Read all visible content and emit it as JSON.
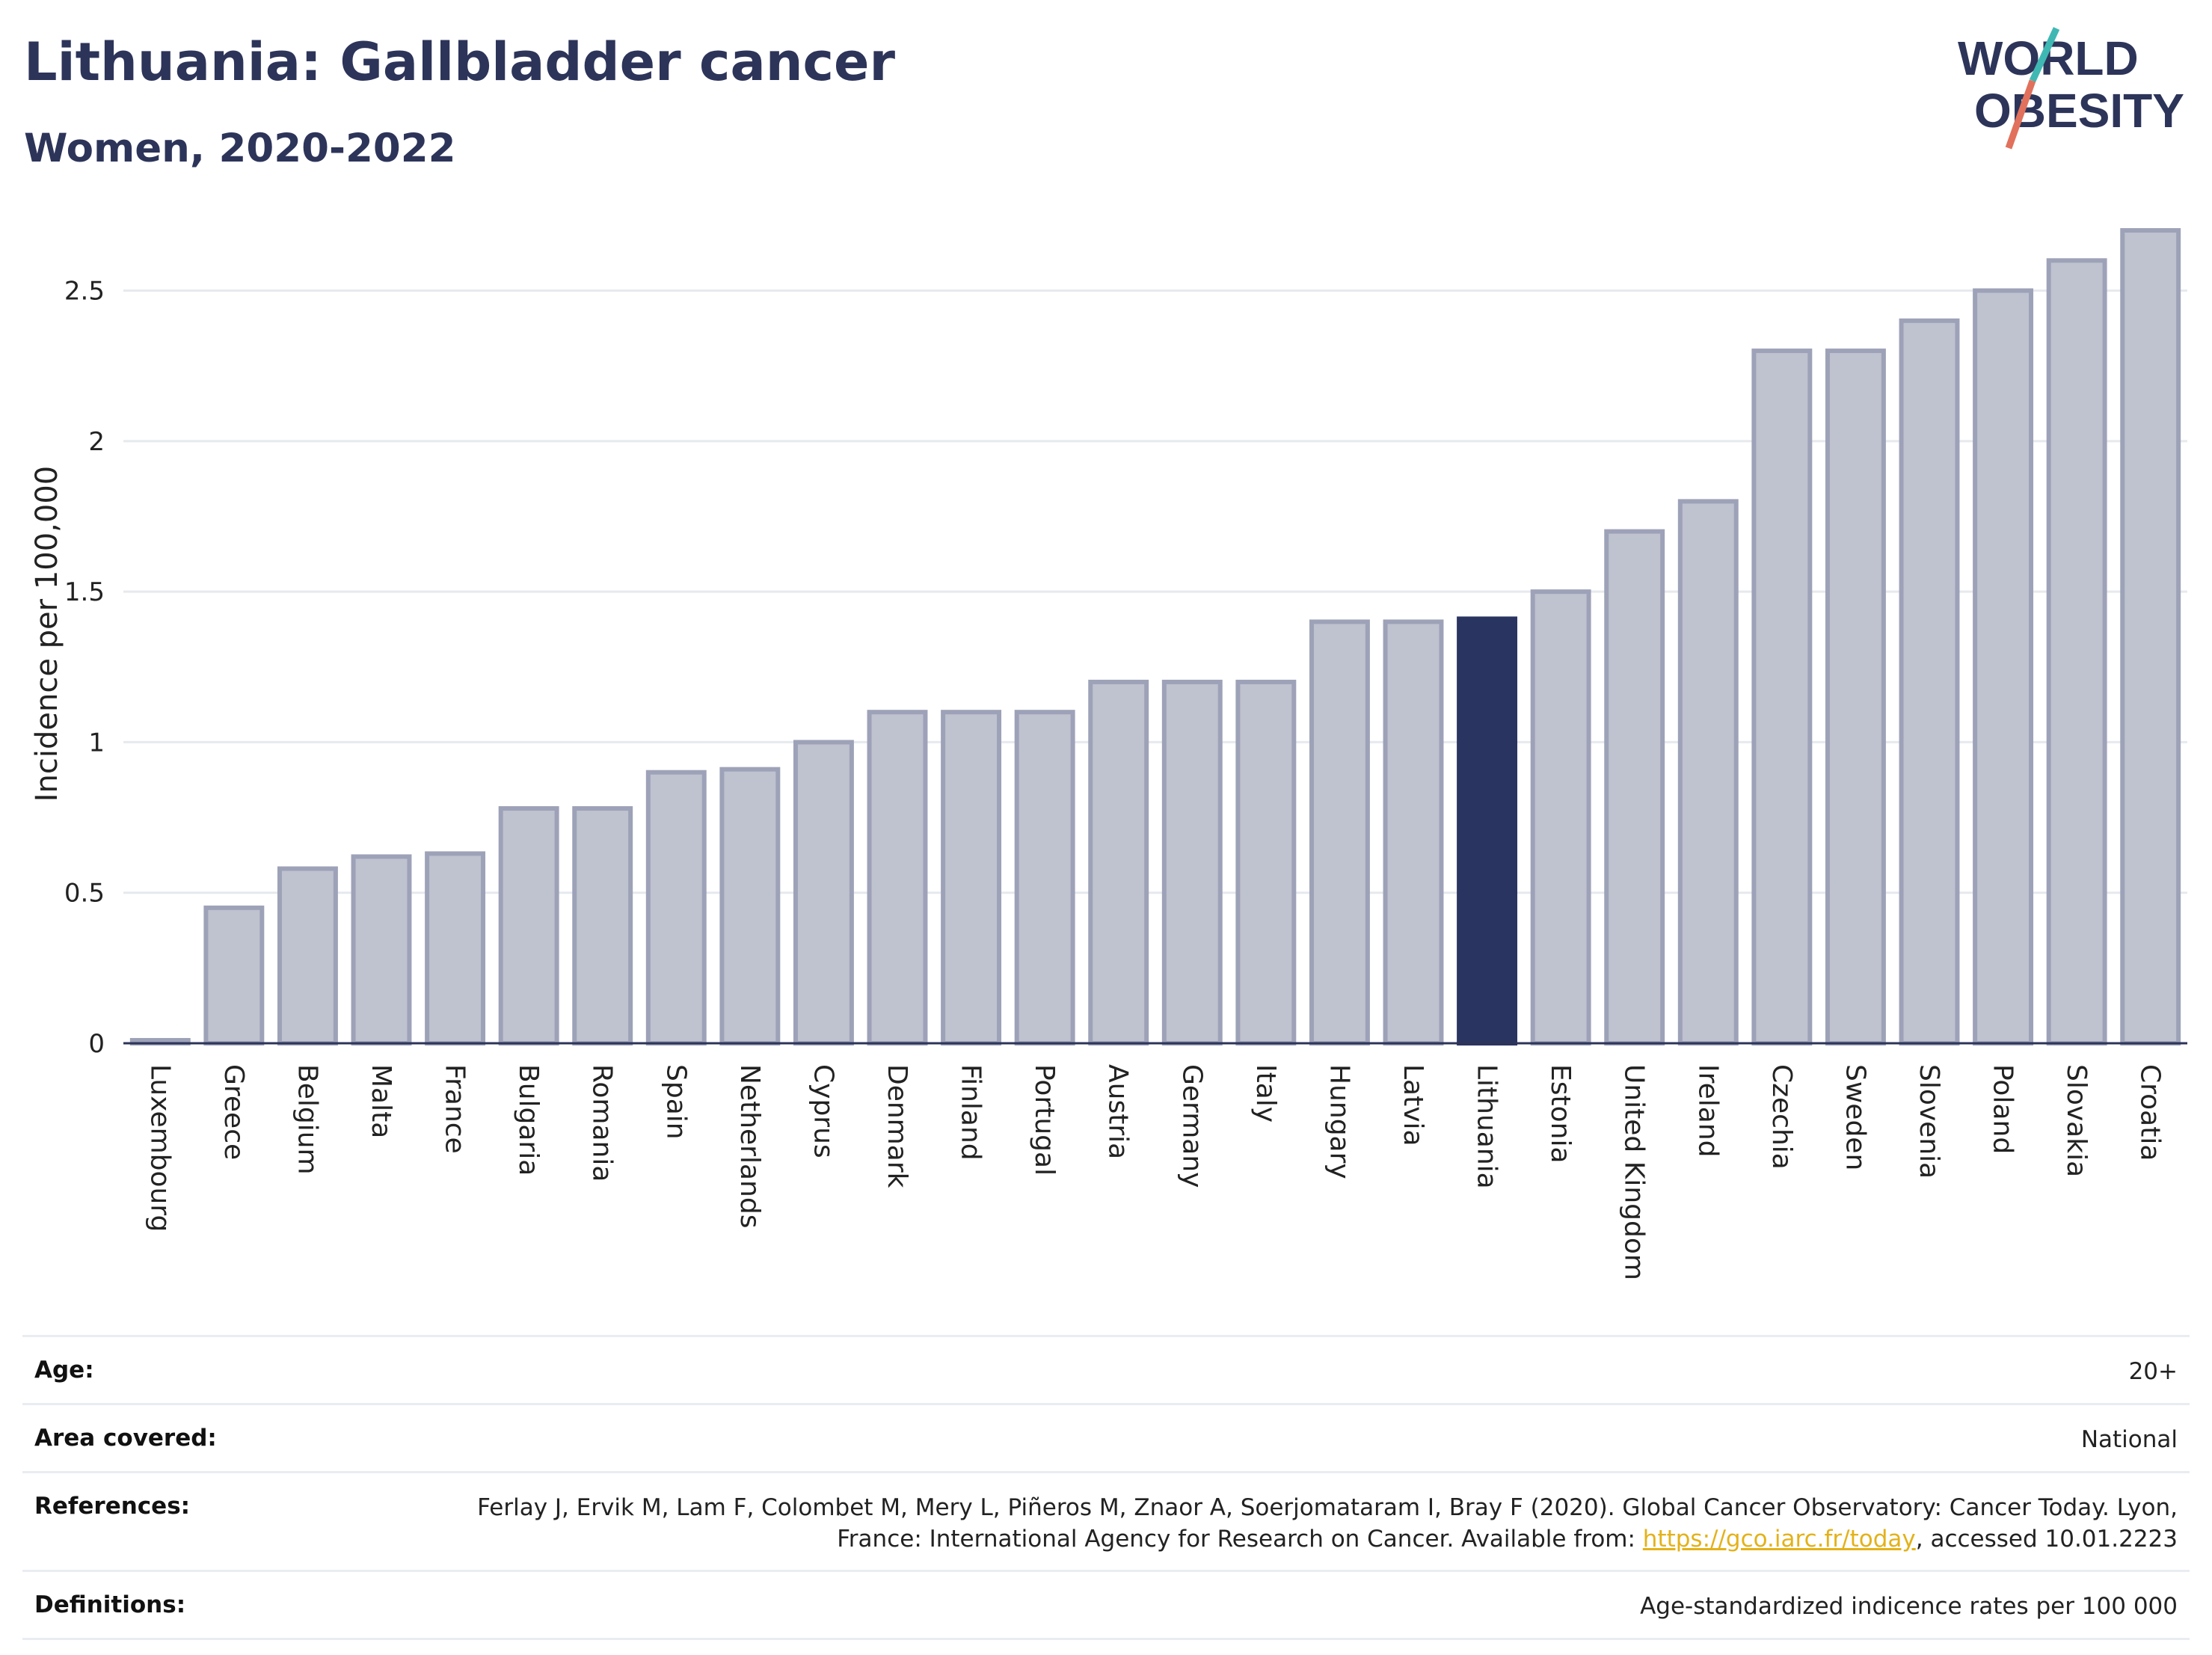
{
  "title": "Lithuania: Gallbladder cancer",
  "subtitle": "Women, 2020-2022",
  "logo": {
    "line1": "WORLD",
    "line2": "OBESITY"
  },
  "colors": {
    "bar": "#bfc2cf",
    "bar_border": "#9ea2b8",
    "highlight": "#2a3460",
    "title": "#2d3459",
    "link": "#e3b21a"
  },
  "chart_data": {
    "type": "bar",
    "ylabel": "Incidence per 100,000",
    "xlabel": "",
    "ylim": [
      0,
      2.72
    ],
    "yticks": [
      0,
      0.5,
      1,
      1.5,
      2,
      2.5
    ],
    "ytick_labels": [
      "0",
      "0.5",
      "1",
      "1.5",
      "2",
      "2.5"
    ],
    "grid": true,
    "highlight": "Lithuania",
    "categories": [
      "Luxembourg",
      "Greece",
      "Belgium",
      "Malta",
      "France",
      "Bulgaria",
      "Romania",
      "Spain",
      "Netherlands",
      "Cyprus",
      "Denmark",
      "Finland",
      "Portugal",
      "Austria",
      "Germany",
      "Italy",
      "Hungary",
      "Latvia",
      "Lithuania",
      "Estonia",
      "United Kingdom",
      "Ireland",
      "Czechia",
      "Sweden",
      "Slovenia",
      "Poland",
      "Slovakia",
      "Croatia"
    ],
    "values": [
      0.01,
      0.45,
      0.58,
      0.62,
      0.63,
      0.78,
      0.78,
      0.9,
      0.91,
      1.0,
      1.1,
      1.1,
      1.1,
      1.2,
      1.2,
      1.2,
      1.4,
      1.4,
      1.41,
      1.5,
      1.7,
      1.8,
      2.3,
      2.3,
      2.4,
      2.5,
      2.6,
      2.7
    ]
  },
  "meta": {
    "age_label": "Age:",
    "age_value": "20+",
    "area_label": "Area covered:",
    "area_value": "National",
    "references_label": "References:",
    "references_text_1": "Ferlay J, Ervik M, Lam F, Colombet M, Mery L, Piñeros M, Znaor A, Soerjomataram I, Bray F (2020). Global Cancer Observatory: Cancer Today. Lyon, France: International Agency for Research on Cancer. Available from: ",
    "references_link": "https://gco.iarc.fr/today",
    "references_text_2": ", accessed 10.01.2223",
    "definitions_label": "Definitions:",
    "definitions_value": "Age-standardized indicence rates per 100 000"
  }
}
